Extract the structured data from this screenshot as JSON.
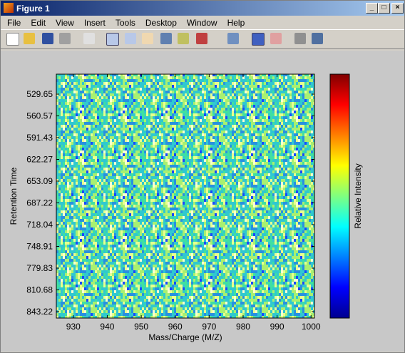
{
  "window": {
    "title": "Figure 1",
    "menu": [
      "File",
      "Edit",
      "View",
      "Insert",
      "Tools",
      "Desktop",
      "Window",
      "Help"
    ]
  },
  "chart_data": {
    "type": "heatmap",
    "xlabel": "Mass/Charge (M/Z)",
    "ylabel": "Retention Time",
    "colorbar_label": "Relative Intensity",
    "colormap": "jet",
    "xlim": [
      925,
      1001
    ],
    "xticks": [
      930,
      940,
      950,
      960,
      970,
      980,
      990,
      1000
    ],
    "y_categories": [
      529.65,
      560.57,
      591.43,
      622.27,
      653.09,
      687.22,
      718.04,
      748.91,
      779.83,
      810.68,
      843.22
    ]
  }
}
